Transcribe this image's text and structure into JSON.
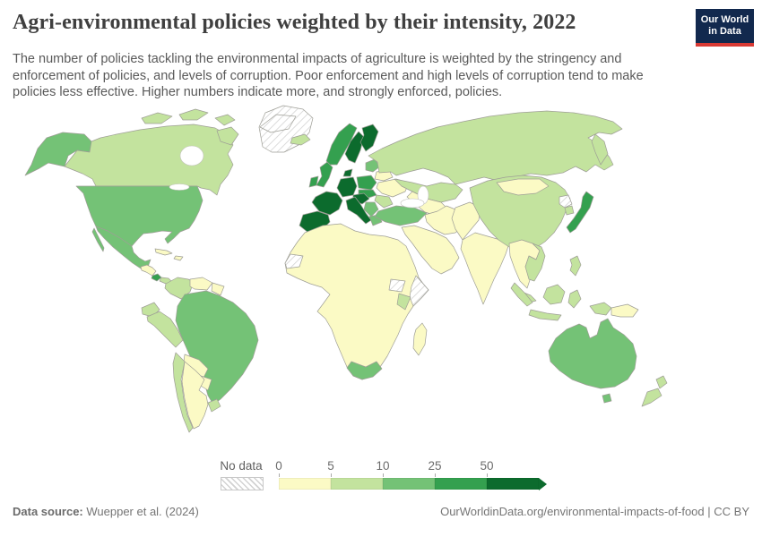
{
  "header": {
    "title": "Agri-environmental policies weighted by their intensity, 2022",
    "subtitle": "The number of policies tackling the environmental impacts of agriculture is weighted by the stringency and enforcement of policies, and levels of corruption. Poor enforcement and high levels of corruption tend to make policies less effective. Higher numbers indicate more, and strongly enforced, policies.",
    "logo_line1": "Our World",
    "logo_line2": "in Data",
    "logo_bg": "#12294e",
    "logo_accent": "#d93a34"
  },
  "legend": {
    "no_data_label": "No data",
    "tick_labels": [
      "0",
      "5",
      "10",
      "25",
      "50"
    ]
  },
  "footer": {
    "source_label": "Data source:",
    "source_value": " Wuepper et al. (2024)",
    "url": "OurWorldinData.org/environmental-impacts-of-food",
    "separator": " | ",
    "license": "CC BY"
  },
  "chart_data": {
    "type": "heatmap",
    "subtype": "choropleth-world-map",
    "title": "Agri-environmental policies weighted by their intensity",
    "year": "2022",
    "unit": "weighted number of strongly enforced policies",
    "bin_edges": [
      0,
      5,
      10,
      25,
      50
    ],
    "bin_labels": [
      "0-5",
      "5-10",
      "10-25",
      "25-50",
      "50+"
    ],
    "bin_colors": [
      "#fbfac5",
      "#c3e39e",
      "#74c276",
      "#34a04f",
      "#0c6b2d"
    ],
    "no_data_key": "no-data",
    "legend_position": "bottom",
    "regions": {
      "alaska": "10-25",
      "usa": "10-25",
      "canada": "5-10",
      "arctic-1": "5-10",
      "arctic-2": "5-10",
      "arctic-3": "5-10",
      "baffin": "5-10",
      "greenland": "no-data",
      "svalbard": "no-data",
      "iceland": "5-10",
      "mexico": "10-25",
      "baja": "10-25",
      "central-america": "0-5",
      "costa-rica": "25-50",
      "panama": "5-10",
      "cuba": "0-5",
      "hispaniola": "0-5",
      "colombia": "5-10",
      "venezuela": "0-5",
      "guyanas": "0-5",
      "ecuador": "5-10",
      "peru": "5-10",
      "brazil": "10-25",
      "bolivia": "0-5",
      "paraguay": "0-5",
      "chile": "5-10",
      "argentina": "0-5",
      "uruguay": "5-10",
      "norway": "25-50",
      "sweden": "50+",
      "finland": "50+",
      "denmark": "50+",
      "uk": "25-50",
      "ireland": "25-50",
      "france": "50+",
      "spain": "50+",
      "germany": "50+",
      "alps": "50+",
      "italy": "50+",
      "poland": "25-50",
      "czechia-slovakia": "25-50",
      "baltics": "10-25",
      "belarus": "0-5",
      "ukraine": "0-5",
      "romania": "5-10",
      "balkans": "10-25",
      "greece": "10-25",
      "turkey": "10-25",
      "russia": "5-10",
      "kamchatka": "5-10",
      "kazakhstan": "5-10",
      "central-asia": "0-5",
      "iran": "0-5",
      "arabia": "0-5",
      "pakistan-afghanistan": "0-5",
      "india": "0-5",
      "china": "5-10",
      "mongolia": "0-5",
      "se-asia": "0-5",
      "vietnam": "5-10",
      "malaysia": "5-10",
      "sumatra": "5-10",
      "borneo": "5-10",
      "java": "5-10",
      "sulawesi": "5-10",
      "west-papua": "5-10",
      "png": "0-5",
      "philippines": "5-10",
      "japan": "25-50",
      "south-korea": "5-10",
      "north-korea": "no-data",
      "africa": "0-5",
      "western-sahara": "no-data",
      "south-sudan": "no-data",
      "somalia": "no-data",
      "kenya": "5-10",
      "south-africa": "10-25",
      "madagascar": "0-5",
      "australia": "10-25",
      "tasmania": "10-25",
      "nz-north": "5-10",
      "nz-south": "5-10"
    }
  }
}
